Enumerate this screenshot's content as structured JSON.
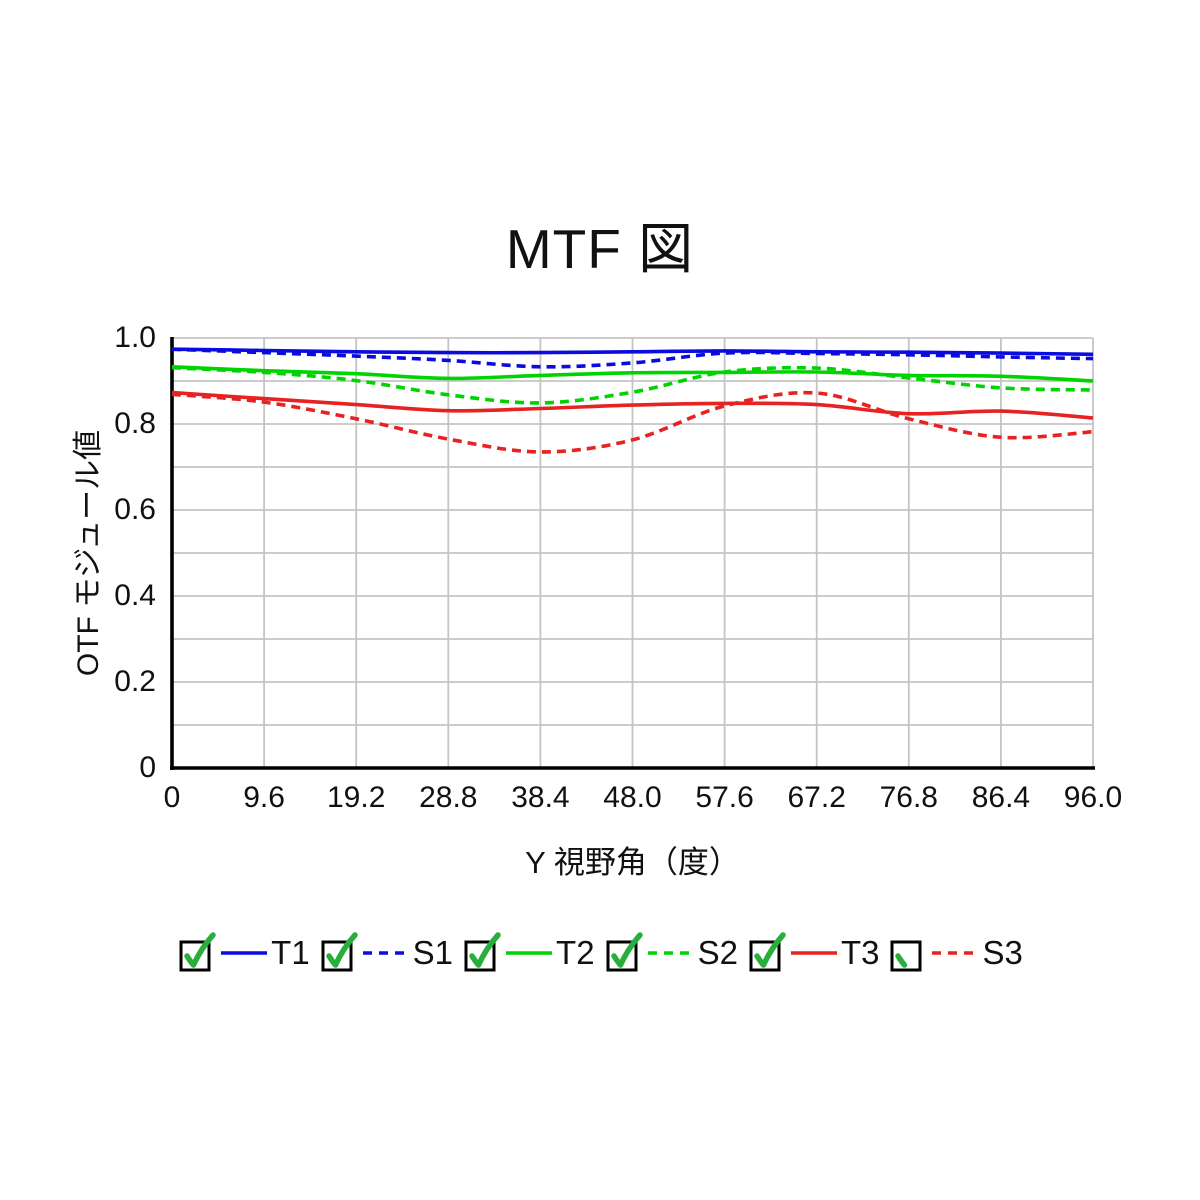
{
  "title": "MTF 図",
  "axes": {
    "y_label": "OTF モジュール値",
    "x_label": "Y 視野角（度）",
    "y_ticks": [
      "1.0",
      "0.8",
      "0.6",
      "0.4",
      "0.2",
      "0"
    ],
    "x_ticks": [
      "0",
      "9.6",
      "19.2",
      "28.8",
      "38.4",
      "48.0",
      "57.6",
      "67.2",
      "76.8",
      "86.4",
      "96.0"
    ]
  },
  "legend": {
    "items": [
      {
        "label": "T1",
        "checked": true
      },
      {
        "label": "S1",
        "checked": true
      },
      {
        "label": "T2",
        "checked": true
      },
      {
        "label": "S2",
        "checked": true
      },
      {
        "label": "T3",
        "checked": true
      },
      {
        "label": "S3",
        "checked": true
      }
    ]
  },
  "colors": {
    "blue": "#0b0be0",
    "green": "#00d400",
    "red": "#e62222",
    "check": "#27ae3b",
    "grid": "#c4c4c4",
    "axis": "#000000"
  },
  "chart_data": {
    "type": "line",
    "title": "MTF 図",
    "xlabel": "Y 視野角（度）",
    "ylabel": "OTF モジュール値",
    "x": [
      0,
      9.6,
      19.2,
      28.8,
      38.4,
      48.0,
      57.6,
      67.2,
      76.8,
      86.4,
      96.0
    ],
    "xlim": [
      0,
      96
    ],
    "ylim": [
      0,
      1.0
    ],
    "grid": true,
    "legend_position": "bottom",
    "series": [
      {
        "name": "T1",
        "color": "#0b0be0",
        "style": "solid",
        "values": [
          0.974,
          0.971,
          0.968,
          0.966,
          0.966,
          0.968,
          0.97,
          0.968,
          0.967,
          0.965,
          0.962
        ]
      },
      {
        "name": "S1",
        "color": "#0b0be0",
        "style": "dashed",
        "values": [
          0.974,
          0.966,
          0.958,
          0.948,
          0.933,
          0.942,
          0.965,
          0.964,
          0.961,
          0.956,
          0.952
        ]
      },
      {
        "name": "T2",
        "color": "#00d400",
        "style": "solid",
        "values": [
          0.933,
          0.924,
          0.917,
          0.906,
          0.913,
          0.919,
          0.92,
          0.921,
          0.913,
          0.911,
          0.9
        ]
      },
      {
        "name": "S2",
        "color": "#00d400",
        "style": "dashed",
        "values": [
          0.931,
          0.92,
          0.901,
          0.868,
          0.849,
          0.874,
          0.921,
          0.93,
          0.907,
          0.884,
          0.879
        ]
      },
      {
        "name": "T3",
        "color": "#e62222",
        "style": "solid",
        "values": [
          0.873,
          0.859,
          0.845,
          0.831,
          0.836,
          0.844,
          0.848,
          0.845,
          0.824,
          0.83,
          0.814
        ]
      },
      {
        "name": "S3",
        "color": "#e62222",
        "style": "dashed",
        "values": [
          0.869,
          0.851,
          0.812,
          0.765,
          0.735,
          0.763,
          0.842,
          0.872,
          0.812,
          0.769,
          0.782
        ]
      }
    ]
  }
}
